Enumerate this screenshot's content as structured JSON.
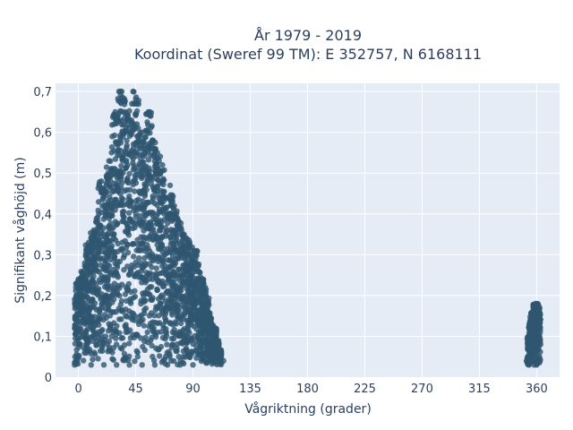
{
  "chart_data": {
    "type": "scatter",
    "title_line1": "År 1979 - 2019",
    "title_line2": "Koordinat (Sweref 99 TM): E 352757, N 6168111",
    "xlabel": "Vågriktning (grader)",
    "ylabel": "Signifikant våghöjd (m)",
    "xlim": [
      -18,
      378
    ],
    "ylim": [
      0,
      0.72
    ],
    "x_ticks": [
      0,
      45,
      90,
      135,
      180,
      225,
      270,
      315,
      360
    ],
    "x_tick_labels": [
      "0",
      "45",
      "90",
      "135",
      "180",
      "225",
      "270",
      "315",
      "360"
    ],
    "y_ticks": [
      0,
      0.1,
      0.2,
      0.3,
      0.4,
      0.5,
      0.6,
      0.7
    ],
    "y_tick_labels": [
      "0",
      "0,1",
      "0,2",
      "0,3",
      "0,4",
      "0,5",
      "0,6",
      "0,7"
    ],
    "grid": true,
    "marker_color": "#2f5670",
    "plot_bg": "#e5ecf6",
    "series": [
      {
        "values": [
          [
            -3,
            0.03
          ],
          [
            -3,
            0.19
          ],
          [
            0,
            0.05
          ],
          [
            0,
            0.24
          ],
          [
            2,
            0.23
          ],
          [
            4,
            0.26
          ],
          [
            7,
            0.28
          ],
          [
            8,
            0.33
          ],
          [
            10,
            0.31
          ],
          [
            12,
            0.36
          ],
          [
            14,
            0.38
          ],
          [
            16,
            0.4
          ],
          [
            18,
            0.48
          ],
          [
            20,
            0.45
          ],
          [
            22,
            0.47
          ],
          [
            24,
            0.53
          ],
          [
            26,
            0.55
          ],
          [
            28,
            0.62
          ],
          [
            29,
            0.65
          ],
          [
            31,
            0.64
          ],
          [
            33,
            0.7
          ],
          [
            34,
            0.7
          ],
          [
            35,
            0.68
          ],
          [
            37,
            0.65
          ],
          [
            39,
            0.62
          ],
          [
            41,
            0.6
          ],
          [
            42,
            0.67
          ],
          [
            43,
            0.7
          ],
          [
            44,
            0.67
          ],
          [
            45,
            0.68
          ],
          [
            46,
            0.62
          ],
          [
            47,
            0.61
          ],
          [
            48,
            0.59
          ],
          [
            50,
            0.6
          ],
          [
            52,
            0.55
          ],
          [
            55,
            0.65
          ],
          [
            56,
            0.65
          ],
          [
            57,
            0.56
          ],
          [
            58,
            0.58
          ],
          [
            60,
            0.56
          ],
          [
            62,
            0.55
          ],
          [
            64,
            0.5
          ],
          [
            66,
            0.52
          ],
          [
            68,
            0.44
          ],
          [
            70,
            0.44
          ],
          [
            72,
            0.47
          ],
          [
            73,
            0.42
          ],
          [
            75,
            0.41
          ],
          [
            77,
            0.4
          ],
          [
            79,
            0.38
          ],
          [
            81,
            0.36
          ],
          [
            83,
            0.35
          ],
          [
            85,
            0.34
          ],
          [
            87,
            0.32
          ],
          [
            89,
            0.3
          ],
          [
            91,
            0.31
          ],
          [
            92,
            0.28
          ],
          [
            94,
            0.26
          ],
          [
            96,
            0.24
          ],
          [
            98,
            0.22
          ],
          [
            100,
            0.2
          ],
          [
            102,
            0.16
          ],
          [
            104,
            0.14
          ],
          [
            106,
            0.12
          ],
          [
            108,
            0.09
          ],
          [
            110,
            0.07
          ],
          [
            112,
            0.05
          ],
          [
            114,
            0.04
          ],
          [
            10,
            0.03
          ],
          [
            20,
            0.03
          ],
          [
            30,
            0.03
          ],
          [
            40,
            0.03
          ],
          [
            50,
            0.03
          ],
          [
            60,
            0.03
          ],
          [
            70,
            0.03
          ],
          [
            80,
            0.03
          ],
          [
            90,
            0.03
          ],
          [
            100,
            0.04
          ],
          [
            352,
            0.04
          ],
          [
            353,
            0.05
          ],
          [
            354,
            0.03
          ],
          [
            355,
            0.1
          ],
          [
            356,
            0.13
          ],
          [
            357,
            0.15
          ],
          [
            358,
            0.16
          ],
          [
            359,
            0.18
          ],
          [
            360,
            0.18
          ],
          [
            361,
            0.16
          ],
          [
            362,
            0.12
          ],
          [
            363,
            0.08
          ],
          [
            358,
            0.03
          ],
          [
            360,
            0.03
          ],
          [
            361,
            0.05
          ]
        ]
      }
    ]
  }
}
